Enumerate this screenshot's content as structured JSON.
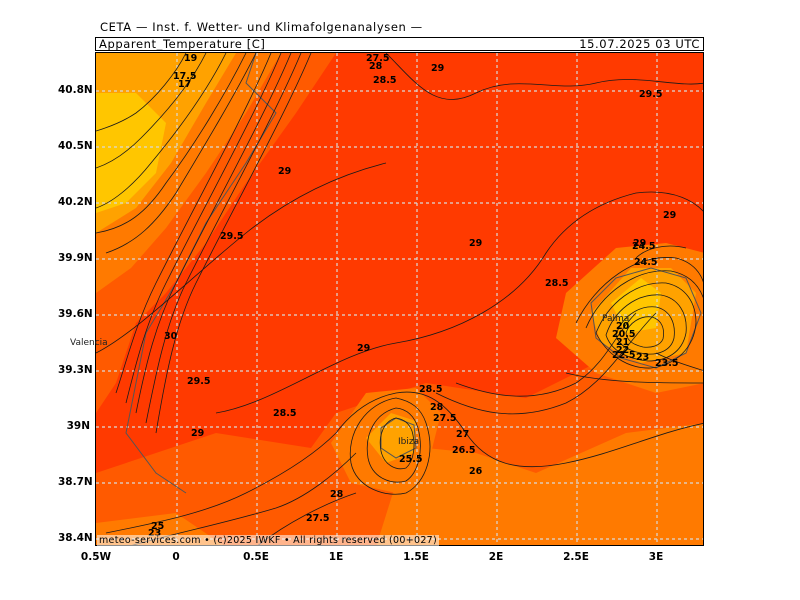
{
  "header": {
    "institute": "CETA — Inst. f. Wetter- und Klimafolgenanalysen —",
    "variable": "Apparent_Temperature [C]",
    "valid_time": "15.07.2025 03 UTC"
  },
  "credit": "meteo-services.com • (c)2025 IWKF • All rights reserved (00+027)",
  "axes": {
    "lat_labels": [
      "40.8N",
      "40.5N",
      "40.2N",
      "39.9N",
      "39.6N",
      "39.3N",
      "39N",
      "38.7N",
      "38.4N"
    ],
    "lon_labels": [
      "0.5W",
      "0",
      "0.5E",
      "1E",
      "1.5E",
      "2E",
      "2.5E",
      "3E"
    ]
  },
  "places": [
    "Valencia",
    "Palma",
    "Ibiza"
  ],
  "contour_labels": [
    "19",
    "17.5",
    "17",
    "27.5",
    "28",
    "28.5",
    "29",
    "29.5",
    "29",
    "29",
    "29.5",
    "29",
    "30",
    "29.5",
    "29",
    "28.5",
    "29",
    "28.5",
    "28",
    "27.5",
    "27",
    "26.5",
    "26",
    "25.5",
    "28",
    "27.5",
    "28.5",
    "29",
    "24.5",
    "24.5",
    "20",
    "20.5",
    "21",
    "22",
    "22.5",
    "23",
    "23.5",
    "25",
    "23"
  ],
  "colors": {
    "hot": "#ff3a00",
    "warm": "#ff5a00",
    "mid": "#ff7a00",
    "cool": "#ffa200",
    "coolest": "#ffc600",
    "grid": "#d9d9d9",
    "contour": "#1a1a1a"
  }
}
